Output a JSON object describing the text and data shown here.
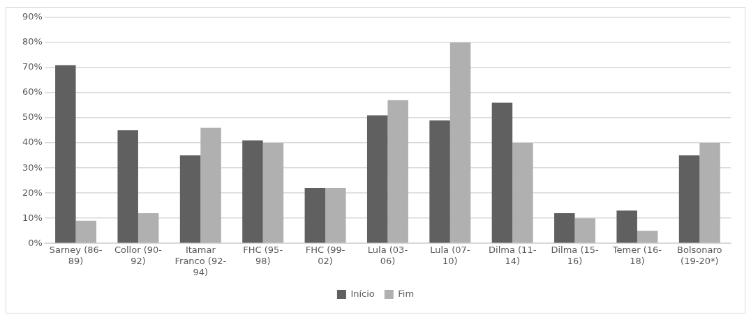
{
  "chart_data": {
    "type": "bar",
    "categories": [
      "Sarney (86-89)",
      "Collor (90-92)",
      "Itamar Franco (92-94)",
      "FHC (95-98)",
      "FHC (99-02)",
      "Lula (03-06)",
      "Lula (07-10)",
      "Dilma (11-14)",
      "Dilma (15-16)",
      "Temer (16-18)",
      "Bolsonaro (19-20*)"
    ],
    "series": [
      {
        "name": "Início",
        "color": "#606060",
        "values": [
          71,
          45,
          35,
          41,
          22,
          51,
          49,
          56,
          12,
          13,
          35
        ]
      },
      {
        "name": "Fim",
        "color": "#b0b0b0",
        "values": [
          9,
          12,
          46,
          40,
          22,
          57,
          80,
          40,
          10,
          5,
          40
        ]
      }
    ],
    "ylim": [
      0,
      90
    ],
    "yticks": [
      {
        "value": 0,
        "label": "0%"
      },
      {
        "value": 10,
        "label": "10%"
      },
      {
        "value": 20,
        "label": "20%"
      },
      {
        "value": 30,
        "label": "30%"
      },
      {
        "value": 40,
        "label": "40%"
      },
      {
        "value": 50,
        "label": "50%"
      },
      {
        "value": 60,
        "label": "60%"
      },
      {
        "value": 70,
        "label": "70%"
      },
      {
        "value": 80,
        "label": "80%"
      },
      {
        "value": 90,
        "label": "90%"
      }
    ],
    "grid": "y",
    "legend": "bottom"
  }
}
